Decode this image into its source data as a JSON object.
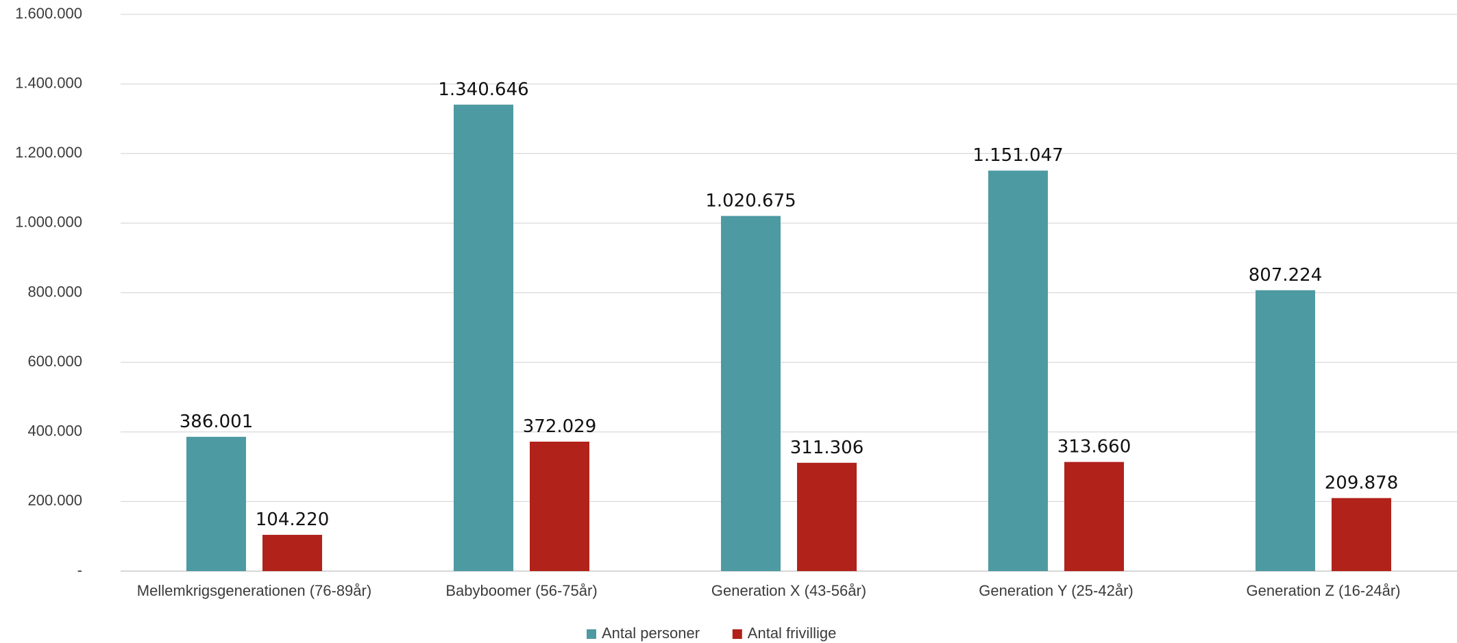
{
  "chart_data": {
    "type": "bar",
    "title": "",
    "xlabel": "",
    "ylabel": "",
    "ylim": [
      0,
      1600000
    ],
    "yticks": [
      0,
      200000,
      400000,
      600000,
      800000,
      1000000,
      1200000,
      1400000,
      1600000
    ],
    "ytick_labels": [
      "-",
      "200.000",
      "400.000",
      "600.000",
      "800.000",
      "1.000.000",
      "1.200.000",
      "1.400.000",
      "1.600.000"
    ],
    "grid": true,
    "legend_position": "bottom",
    "categories": [
      "Mellemkrigsgenerationen (76-89år)",
      "Babyboomer (56-75år)",
      "Generation X (43-56år)",
      "Generation Y (25-42år)",
      "Generation Z (16-24år)"
    ],
    "series": [
      {
        "name": "Antal personer",
        "color": "#4e9aa2",
        "values": [
          386001,
          1340646,
          1020675,
          1151047,
          807224
        ],
        "labels": [
          "386.001",
          "1.340.646",
          "1.020.675",
          "1.151.047",
          "807.224"
        ]
      },
      {
        "name": "Antal frivillige",
        "color": "#b0221a",
        "values": [
          104220,
          372029,
          311306,
          313660,
          209878
        ],
        "labels": [
          "104.220",
          "372.029",
          "311.306",
          "313.660",
          "209.878"
        ]
      }
    ]
  }
}
